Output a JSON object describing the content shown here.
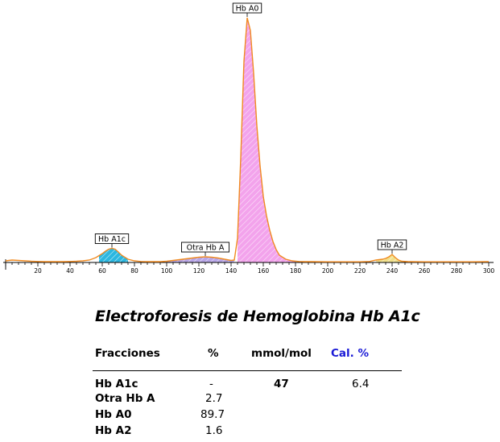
{
  "chart_data": {
    "type": "line",
    "xlim": [
      0,
      300
    ],
    "x_ticks": [
      20,
      40,
      60,
      80,
      100,
      120,
      140,
      160,
      180,
      200,
      220,
      240,
      260,
      280,
      300
    ],
    "line_color": "#f08a20",
    "x": [
      0,
      4,
      8,
      12,
      16,
      20,
      24,
      28,
      32,
      36,
      40,
      44,
      48,
      52,
      56,
      60,
      62,
      64,
      66,
      68,
      70,
      72,
      76,
      80,
      84,
      88,
      92,
      96,
      100,
      104,
      108,
      112,
      116,
      120,
      124,
      128,
      132,
      136,
      140,
      142,
      144,
      146,
      148,
      150,
      152,
      154,
      156,
      158,
      160,
      162,
      164,
      166,
      168,
      170,
      174,
      178,
      182,
      186,
      190,
      200,
      210,
      220,
      226,
      230,
      234,
      236,
      238,
      240,
      242,
      244,
      246,
      250,
      260,
      270,
      280,
      290,
      300
    ],
    "y": [
      2,
      3,
      2.5,
      2,
      1.5,
      1.2,
      1,
      1,
      1,
      1,
      1.2,
      1.5,
      2,
      3,
      6,
      11,
      14,
      16.5,
      17.5,
      16.5,
      13,
      9,
      4,
      2,
      1.2,
      1,
      1,
      1,
      1.5,
      2.5,
      3.5,
      4.5,
      5.5,
      6.5,
      7,
      6.5,
      5.5,
      4,
      2.5,
      3,
      30,
      130,
      250,
      304,
      288,
      235,
      170,
      120,
      82,
      58,
      40,
      26,
      16,
      9,
      4,
      2,
      1.2,
      1,
      1,
      0.8,
      0.8,
      0.8,
      1.2,
      3,
      4,
      5,
      7,
      10,
      6,
      3,
      1.5,
      1,
      0.8,
      0.8,
      0.8,
      0.8,
      1
    ],
    "peaks": [
      {
        "name": "Hb A1c",
        "x": 66,
        "range": [
          58,
          76
        ],
        "fill": "#2bb7e0"
      },
      {
        "name": "Otra Hb A",
        "x": 124,
        "range": [
          100,
          142
        ],
        "fill": "#b8a6e8"
      },
      {
        "name": "Hb A0",
        "x": 150,
        "range": [
          144,
          180
        ],
        "fill": "#f3a3ec"
      },
      {
        "name": "Hb A2",
        "x": 240,
        "range": [
          230,
          246
        ],
        "fill": "#f1e08a"
      }
    ]
  },
  "report": {
    "title": "Electroforesis de Hemoglobina Hb A1c",
    "headers": {
      "fracciones": "Fracciones",
      "percent": "%",
      "mmol": "mmol/mol",
      "cal": "Cal. %"
    },
    "rows": [
      {
        "name": "Hb A1c",
        "percent": "-",
        "mmol": "47",
        "cal": "6.4"
      },
      {
        "name": "Otra Hb A",
        "percent": "2.7",
        "mmol": "",
        "cal": ""
      },
      {
        "name": "Hb A0",
        "percent": "89.7",
        "mmol": "",
        "cal": ""
      },
      {
        "name": "Hb A2",
        "percent": "1.6",
        "mmol": "",
        "cal": ""
      }
    ]
  }
}
